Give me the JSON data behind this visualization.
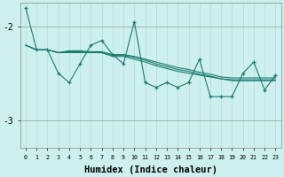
{
  "xlabel": "Humidex (Indice chaleur)",
  "background_color": "#cdf0ee",
  "line_color": "#1a7a6e",
  "grid_color_v": "#b0ddd8",
  "grid_color_h": "#999999",
  "yticks": [
    -3,
    -2
  ],
  "ylim": [
    -3.3,
    -1.75
  ],
  "xlim": [
    -0.5,
    23.5
  ],
  "x_values": [
    0,
    1,
    2,
    3,
    4,
    5,
    6,
    7,
    8,
    9,
    10,
    11,
    12,
    13,
    14,
    15,
    16,
    17,
    18,
    19,
    20,
    21,
    22,
    23
  ],
  "series1": [
    -1.8,
    -2.25,
    -2.25,
    -2.5,
    -2.6,
    -2.4,
    -2.2,
    -2.15,
    -2.3,
    -2.4,
    -1.95,
    -2.6,
    -2.65,
    -2.6,
    -2.65,
    -2.6,
    -2.35,
    -2.75,
    -2.75,
    -2.75,
    -2.5,
    -2.38,
    -2.68,
    -2.52
  ],
  "series2_trend": [
    -2.2,
    -2.25,
    -2.25,
    -2.28,
    -2.28,
    -2.28,
    -2.28,
    -2.28,
    -2.32,
    -2.32,
    -2.35,
    -2.38,
    -2.42,
    -2.45,
    -2.48,
    -2.5,
    -2.52,
    -2.54,
    -2.56,
    -2.58,
    -2.58,
    -2.58,
    -2.58,
    -2.58
  ],
  "series3_trend": [
    -2.2,
    -2.25,
    -2.25,
    -2.28,
    -2.27,
    -2.27,
    -2.28,
    -2.28,
    -2.31,
    -2.31,
    -2.33,
    -2.36,
    -2.4,
    -2.43,
    -2.46,
    -2.48,
    -2.51,
    -2.53,
    -2.56,
    -2.57,
    -2.57,
    -2.57,
    -2.57,
    -2.57
  ],
  "series4_trend": [
    -2.2,
    -2.25,
    -2.25,
    -2.28,
    -2.26,
    -2.26,
    -2.27,
    -2.27,
    -2.3,
    -2.3,
    -2.32,
    -2.35,
    -2.38,
    -2.41,
    -2.44,
    -2.46,
    -2.49,
    -2.51,
    -2.54,
    -2.55,
    -2.55,
    -2.55,
    -2.55,
    -2.55
  ]
}
